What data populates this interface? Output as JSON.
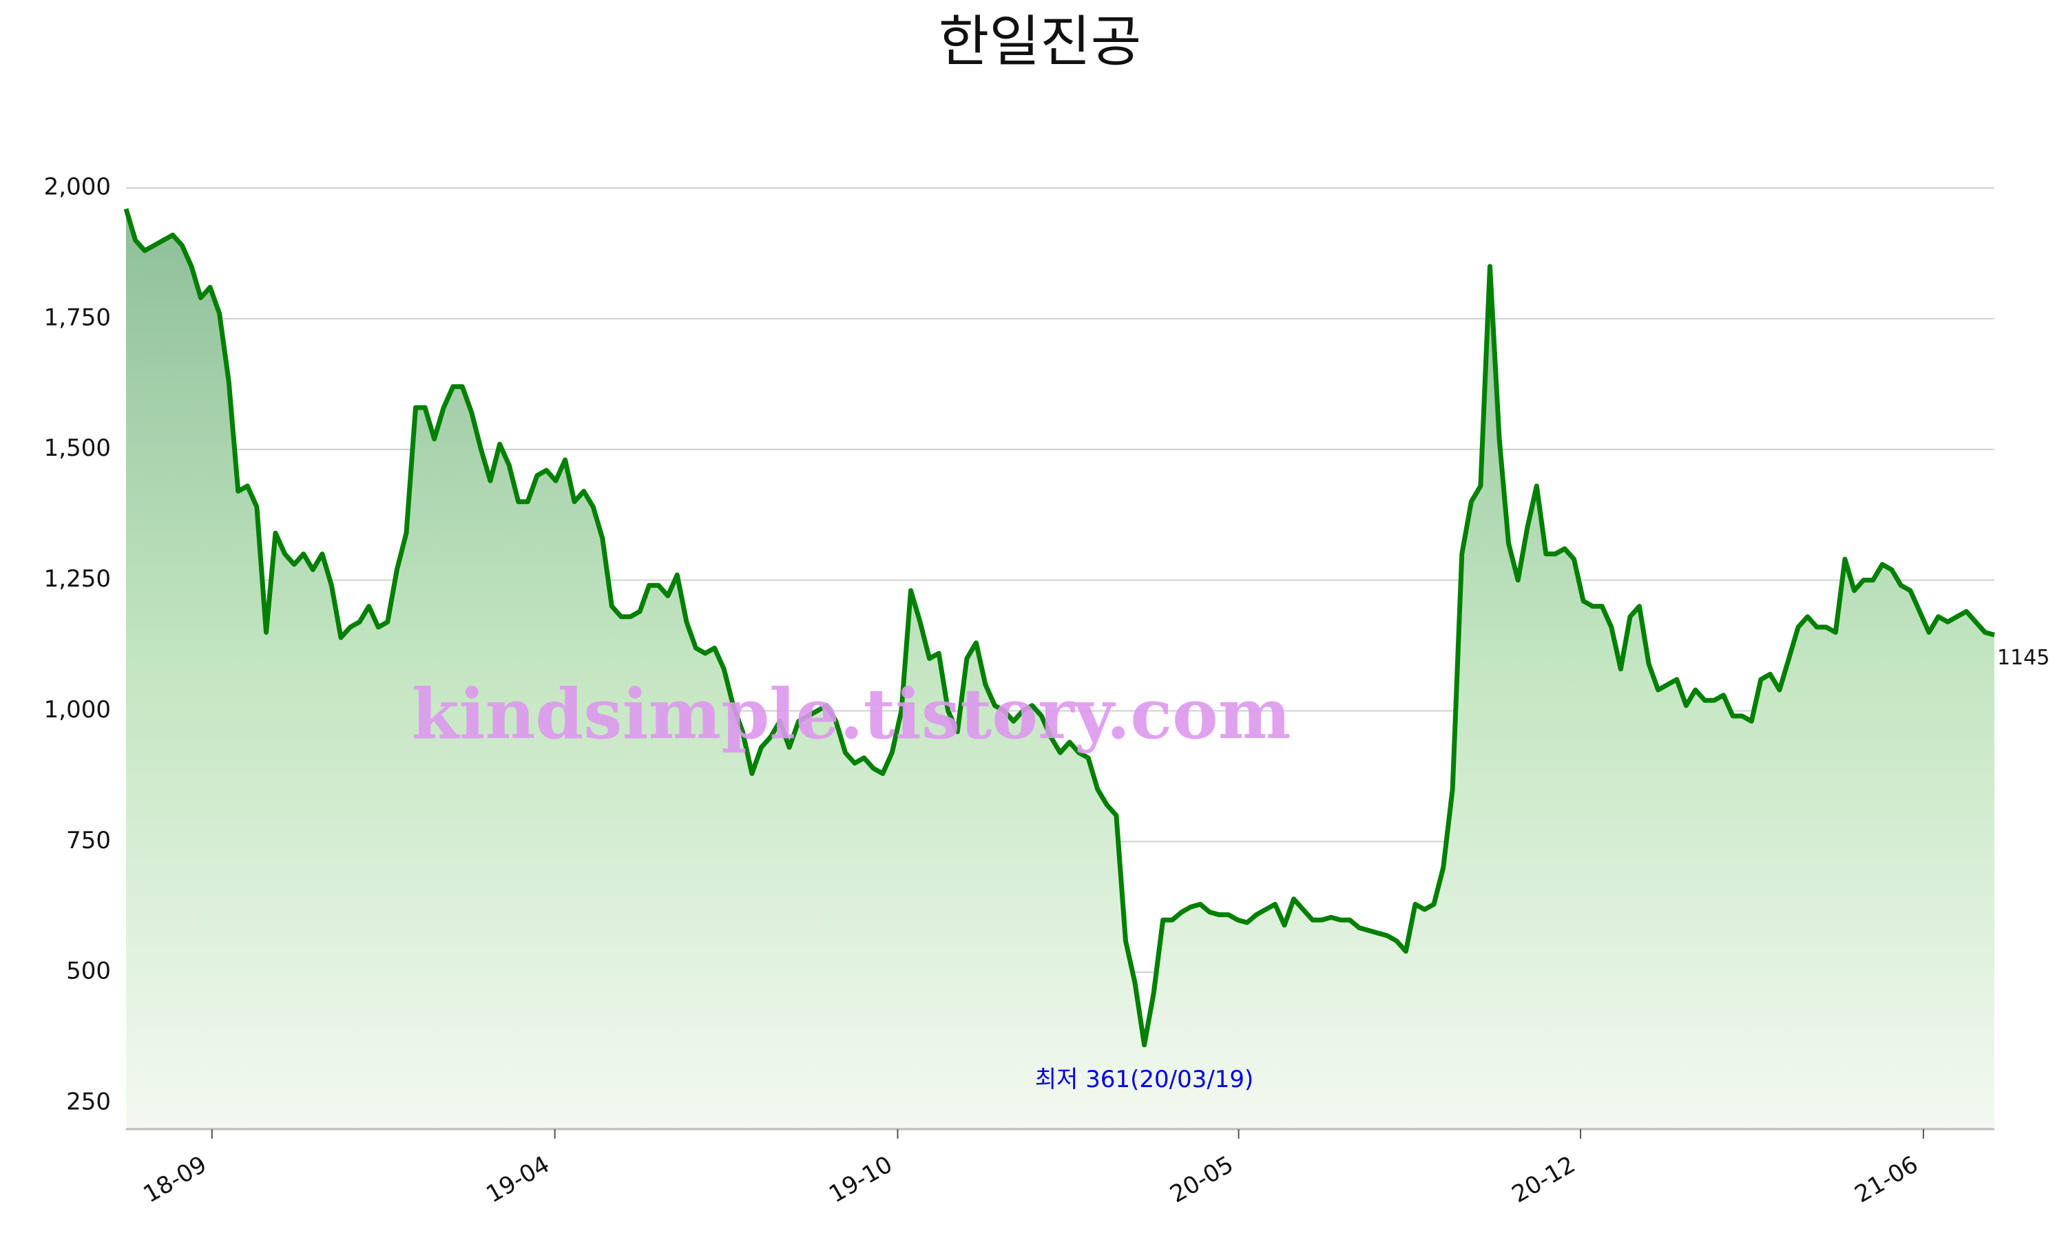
{
  "chart_data": {
    "type": "line",
    "title": "한일진공",
    "values": [
      1960,
      1900,
      1880,
      1890,
      1900,
      1910,
      1890,
      1850,
      1790,
      1810,
      1760,
      1630,
      1420,
      1430,
      1390,
      1150,
      1340,
      1300,
      1280,
      1300,
      1270,
      1300,
      1240,
      1140,
      1160,
      1170,
      1200,
      1160,
      1170,
      1270,
      1340,
      1580,
      1580,
      1520,
      1580,
      1620,
      1620,
      1570,
      1500,
      1440,
      1510,
      1470,
      1400,
      1400,
      1450,
      1460,
      1440,
      1480,
      1400,
      1420,
      1390,
      1330,
      1200,
      1180,
      1180,
      1190,
      1240,
      1240,
      1220,
      1260,
      1170,
      1120,
      1110,
      1120,
      1080,
      1010,
      960,
      880,
      930,
      950,
      980,
      930,
      980,
      990,
      1000,
      1010,
      980,
      920,
      900,
      910,
      890,
      880,
      920,
      1000,
      1230,
      1170,
      1100,
      1110,
      1000,
      960,
      1100,
      1130,
      1050,
      1010,
      1000,
      980,
      1000,
      1010,
      990,
      950,
      920,
      940,
      920,
      910,
      850,
      820,
      800,
      560,
      480,
      361,
      460,
      600,
      600,
      615,
      625,
      630,
      615,
      610,
      610,
      600,
      595,
      610,
      620,
      630,
      590,
      640,
      620,
      600,
      600,
      605,
      600,
      600,
      585,
      580,
      575,
      570,
      560,
      540,
      630,
      620,
      630,
      700,
      850,
      1300,
      1400,
      1430,
      1850,
      1520,
      1320,
      1250,
      1350,
      1430,
      1300,
      1300,
      1310,
      1290,
      1210,
      1200,
      1200,
      1160,
      1080,
      1180,
      1200,
      1090,
      1040,
      1050,
      1060,
      1010,
      1040,
      1020,
      1020,
      1030,
      990,
      990,
      980,
      1060,
      1070,
      1040,
      1100,
      1160,
      1180,
      1160,
      1160,
      1150,
      1290,
      1230,
      1250,
      1250,
      1280,
      1270,
      1240,
      1230,
      1190,
      1150,
      1180,
      1170,
      1180,
      1190,
      1170,
      1150,
      1145
    ],
    "color": "#008000",
    "xlim": [
      0,
      200
    ],
    "xticks": [
      {
        "value": 9.2,
        "label": "18-09"
      },
      {
        "value": 45.9,
        "label": "19-04"
      },
      {
        "value": 82.6,
        "label": "19-10"
      },
      {
        "value": 119.1,
        "label": "20-05"
      },
      {
        "value": 155.7,
        "label": "20-12"
      },
      {
        "value": 192.4,
        "label": "21-06"
      }
    ],
    "ylim": [
      200,
      2000
    ],
    "yticks": [
      250,
      500,
      750,
      {
        "value": 1000,
        "label": "1,000"
      },
      {
        "value": 1250,
        "label": "1,250"
      },
      {
        "value": 1500,
        "label": "1,500"
      },
      {
        "value": 1750,
        "label": "1,750"
      },
      {
        "value": 2000,
        "label": "2,000"
      }
    ],
    "grid": true,
    "annotation": "최저 361(20/03/19)",
    "watermark": "kindsimple.tistory.com"
  }
}
